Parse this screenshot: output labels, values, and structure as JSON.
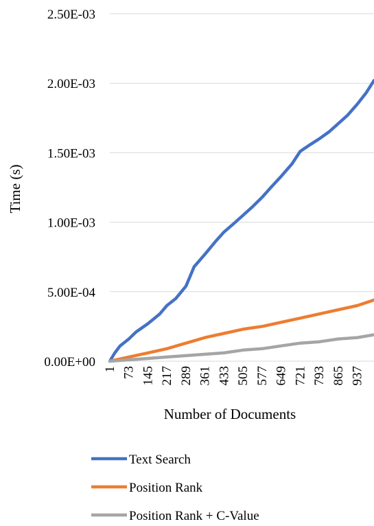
{
  "chart_data": {
    "type": "line",
    "title": "",
    "xlabel": "Number of Documents",
    "ylabel": "Time (s)",
    "x_range": [
      1,
      1000
    ],
    "xticks": [
      1,
      73,
      145,
      217,
      289,
      361,
      433,
      505,
      577,
      649,
      721,
      793,
      865,
      937
    ],
    "yticks": [
      "0.00E+00",
      "5.00E-04",
      "1.00E-03",
      "1.50E-03",
      "2.00E-03",
      "2.50E-03"
    ],
    "ylim": [
      0,
      0.0025
    ],
    "grid": "horizontal",
    "legend_position": "bottom",
    "series": [
      {
        "name": "Text Search",
        "color": "#4472C4",
        "points": [
          [
            1,
            0.0
          ],
          [
            20,
            6e-05
          ],
          [
            40,
            0.00011
          ],
          [
            73,
            0.00016
          ],
          [
            100,
            0.00021
          ],
          [
            145,
            0.00027
          ],
          [
            190,
            0.00034
          ],
          [
            217,
            0.0004
          ],
          [
            250,
            0.00045
          ],
          [
            289,
            0.00054
          ],
          [
            320,
            0.00068
          ],
          [
            361,
            0.00077
          ],
          [
            400,
            0.00086
          ],
          [
            433,
            0.00093
          ],
          [
            470,
            0.00099
          ],
          [
            505,
            0.00105
          ],
          [
            540,
            0.00111
          ],
          [
            577,
            0.00118
          ],
          [
            610,
            0.00125
          ],
          [
            649,
            0.00133
          ],
          [
            690,
            0.00142
          ],
          [
            721,
            0.00151
          ],
          [
            760,
            0.00156
          ],
          [
            793,
            0.0016
          ],
          [
            830,
            0.00165
          ],
          [
            865,
            0.00171
          ],
          [
            900,
            0.00177
          ],
          [
            937,
            0.00185
          ],
          [
            970,
            0.00193
          ],
          [
            1000,
            0.00202
          ]
        ]
      },
      {
        "name": "Position Rank",
        "color": "#ED7D31",
        "points": [
          [
            1,
            0.0
          ],
          [
            73,
            3e-05
          ],
          [
            145,
            6e-05
          ],
          [
            217,
            9e-05
          ],
          [
            289,
            0.00013
          ],
          [
            361,
            0.00017
          ],
          [
            433,
            0.0002
          ],
          [
            505,
            0.00023
          ],
          [
            577,
            0.00025
          ],
          [
            649,
            0.00028
          ],
          [
            721,
            0.00031
          ],
          [
            793,
            0.00034
          ],
          [
            865,
            0.00037
          ],
          [
            937,
            0.0004
          ],
          [
            1000,
            0.00044
          ]
        ]
      },
      {
        "name": "Position Rank + C-Value",
        "color": "#A5A5A5",
        "points": [
          [
            1,
            0.0
          ],
          [
            73,
            1e-05
          ],
          [
            145,
            2e-05
          ],
          [
            217,
            3e-05
          ],
          [
            289,
            4e-05
          ],
          [
            361,
            5e-05
          ],
          [
            433,
            6e-05
          ],
          [
            505,
            8e-05
          ],
          [
            577,
            9e-05
          ],
          [
            649,
            0.00011
          ],
          [
            721,
            0.00013
          ],
          [
            793,
            0.00014
          ],
          [
            865,
            0.00016
          ],
          [
            937,
            0.00017
          ],
          [
            1000,
            0.00019
          ]
        ]
      }
    ]
  }
}
